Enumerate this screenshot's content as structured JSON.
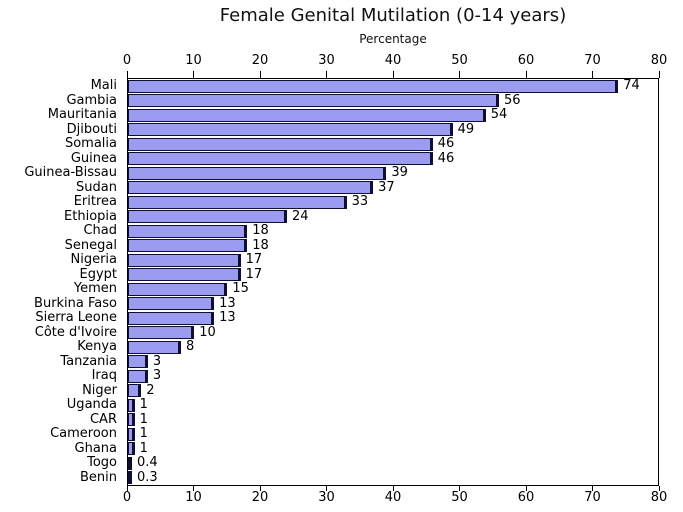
{
  "chart_data": {
    "type": "bar",
    "orientation": "horizontal",
    "title": "Female Genital Mutilation (0-14 years)",
    "xlabel": "Percentage",
    "xlim": [
      0,
      80
    ],
    "xticks": [
      0,
      10,
      20,
      30,
      40,
      50,
      60,
      70,
      80
    ],
    "grid": false,
    "legend": "none",
    "categories": [
      "Mali",
      "Gambia",
      "Mauritania",
      "Djibouti",
      "Somalia",
      "Guinea",
      "Guinea-Bissau",
      "Sudan",
      "Eritrea",
      "Ethiopia",
      "Chad",
      "Senegal",
      "Nigeria",
      "Egypt",
      "Yemen",
      "Burkina Faso",
      "Sierra Leone",
      "Côte d'Ivoire",
      "Kenya",
      "Tanzania",
      "Iraq",
      "Niger",
      "Uganda",
      "CAR",
      "Cameroon",
      "Ghana",
      "Togo",
      "Benin"
    ],
    "values": [
      74,
      56,
      54,
      49,
      46,
      46,
      39,
      37,
      33,
      24,
      18,
      18,
      17,
      17,
      15,
      13,
      13,
      10,
      8,
      3,
      3,
      2,
      1,
      1,
      1,
      1,
      0.4,
      0.3
    ],
    "value_labels": [
      "74",
      "56",
      "54",
      "49",
      "46",
      "46",
      "39",
      "37",
      "33",
      "24",
      "18",
      "18",
      "17",
      "17",
      "15",
      "13",
      "13",
      "10",
      "8",
      "3",
      "3",
      "2",
      "1",
      "1",
      "1",
      "1",
      "0.4",
      "0.3"
    ],
    "colors": {
      "bar_fill": "#9b9bef",
      "bar_edge": "#0f0f33",
      "text": "#000000",
      "spine": "#000000",
      "background": "#ffffff"
    }
  }
}
